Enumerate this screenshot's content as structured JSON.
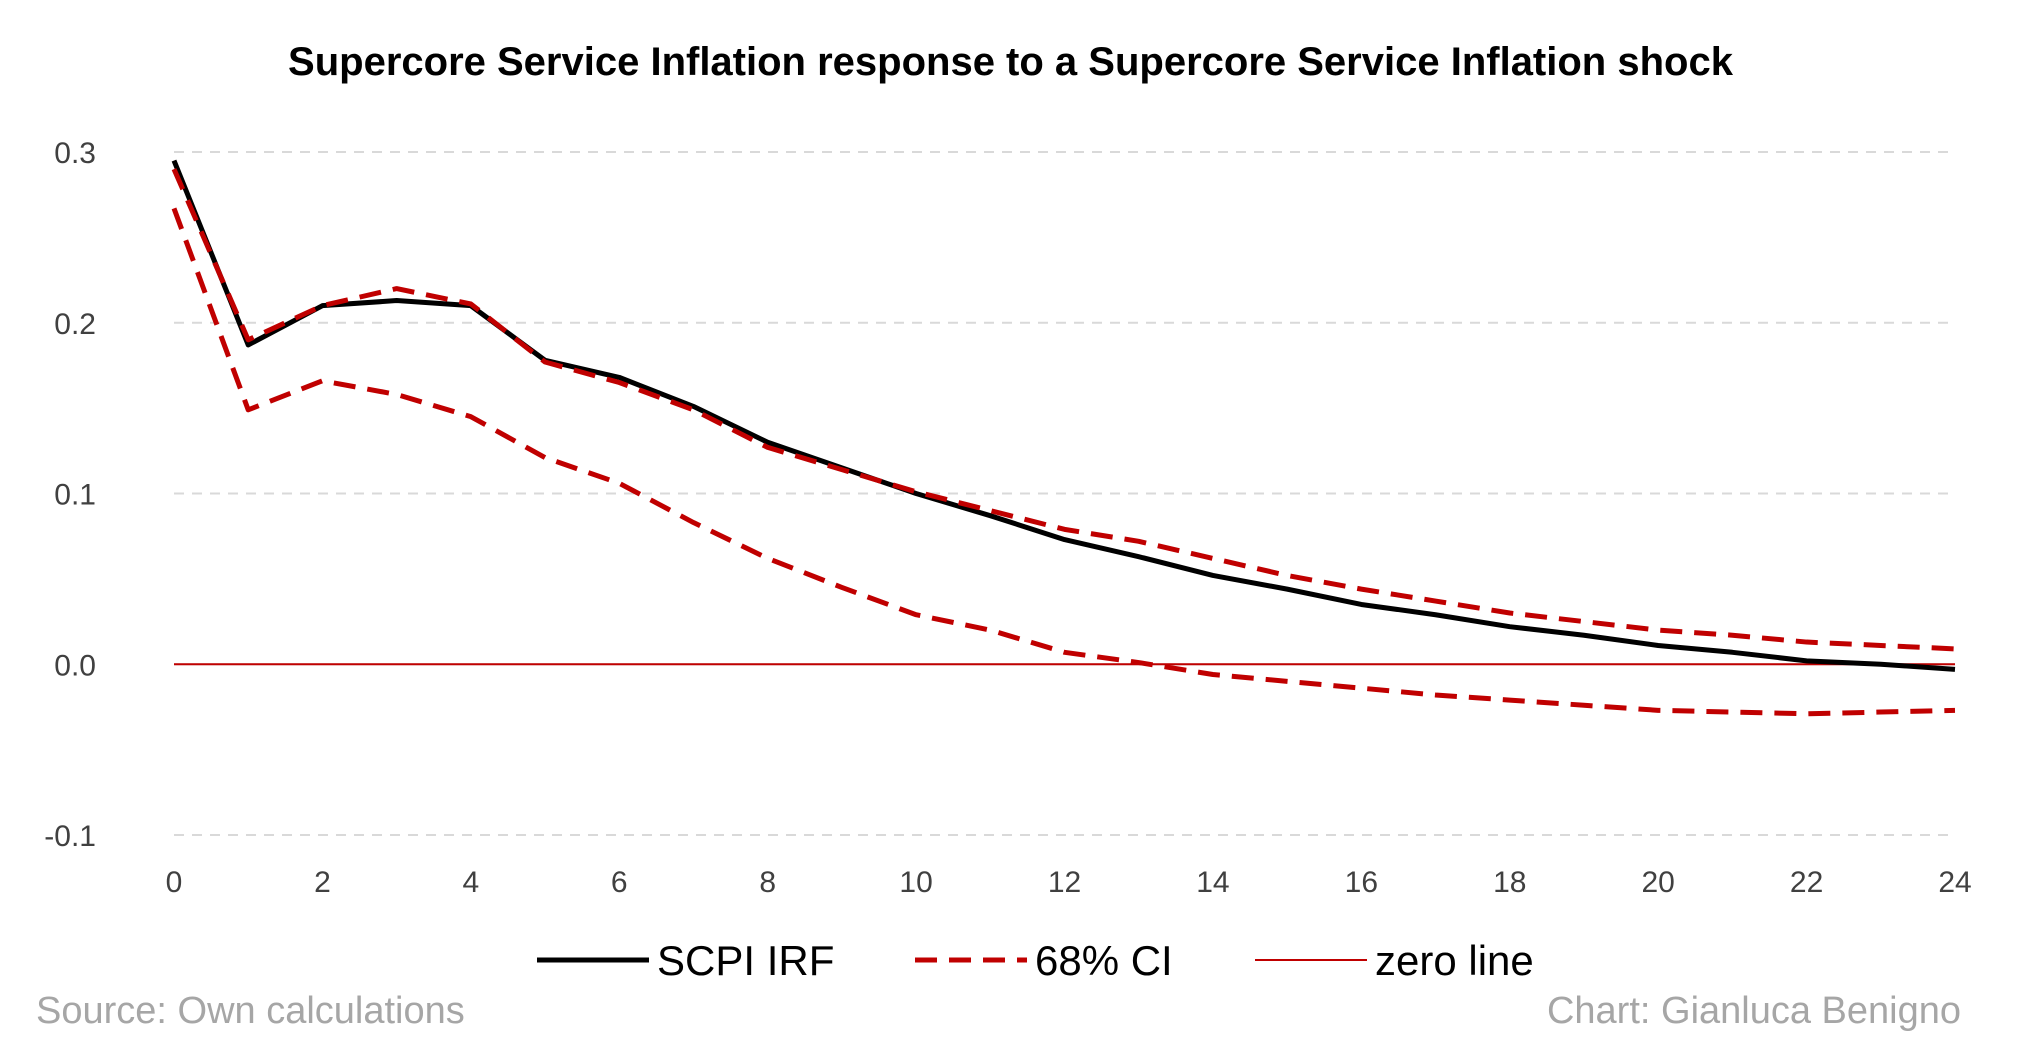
{
  "chart_data": {
    "type": "line",
    "title": "Supercore Service Inflation response to a Supercore Service Inflation  shock",
    "xlabel": "",
    "ylabel": "",
    "xlim": [
      0,
      24
    ],
    "ylim": [
      -0.1,
      0.3
    ],
    "x_ticks": [
      "0",
      "2",
      "4",
      "6",
      "8",
      "10",
      "12",
      "14",
      "16",
      "18",
      "20",
      "22",
      "24"
    ],
    "y_ticks": [
      "0.3",
      "0.2",
      "0.1",
      "0.0",
      "-0.1"
    ],
    "grid": true,
    "legend_position": "bottom",
    "x": [
      0,
      1,
      2,
      3,
      4,
      5,
      6,
      7,
      8,
      9,
      10,
      11,
      12,
      13,
      14,
      15,
      16,
      17,
      18,
      19,
      20,
      21,
      22,
      23,
      24
    ],
    "series": [
      {
        "name": "SCPI IRF",
        "color": "#000000",
        "style": "solid",
        "values": [
          0.295,
          0.187,
          0.21,
          0.213,
          0.21,
          0.178,
          0.168,
          0.151,
          0.13,
          0.115,
          0.1,
          0.087,
          0.073,
          0.063,
          0.052,
          0.044,
          0.035,
          0.029,
          0.022,
          0.017,
          0.011,
          0.007,
          0.002,
          0.0,
          -0.003
        ]
      },
      {
        "name": "68% CI",
        "color": "#c00000",
        "style": "dashed",
        "values": [
          0.29,
          0.19,
          0.21,
          0.22,
          0.211,
          0.177,
          0.165,
          0.149,
          0.127,
          0.114,
          0.101,
          0.09,
          0.079,
          0.072,
          0.062,
          0.052,
          0.044,
          0.037,
          0.03,
          0.025,
          0.02,
          0.017,
          0.013,
          0.011,
          0.009
        ]
      },
      {
        "name": "68% CI lower",
        "color": "#c00000",
        "style": "dashed",
        "values": [
          0.267,
          0.149,
          0.166,
          0.158,
          0.145,
          0.121,
          0.106,
          0.083,
          0.062,
          0.045,
          0.029,
          0.02,
          0.007,
          0.001,
          -0.006,
          -0.01,
          -0.014,
          -0.018,
          -0.021,
          -0.024,
          -0.027,
          -0.028,
          -0.029,
          -0.028,
          -0.027
        ]
      },
      {
        "name": "zero line",
        "color": "#c00000",
        "style": "solid-thin",
        "values": [
          0,
          0,
          0,
          0,
          0,
          0,
          0,
          0,
          0,
          0,
          0,
          0,
          0,
          0,
          0,
          0,
          0,
          0,
          0,
          0,
          0,
          0,
          0,
          0,
          0
        ]
      }
    ],
    "legend": [
      "SCPI IRF",
      "68% CI",
      "zero line"
    ]
  },
  "footer": {
    "source": "Source: Own calculations",
    "credit": "Chart: Gianluca Benigno"
  }
}
